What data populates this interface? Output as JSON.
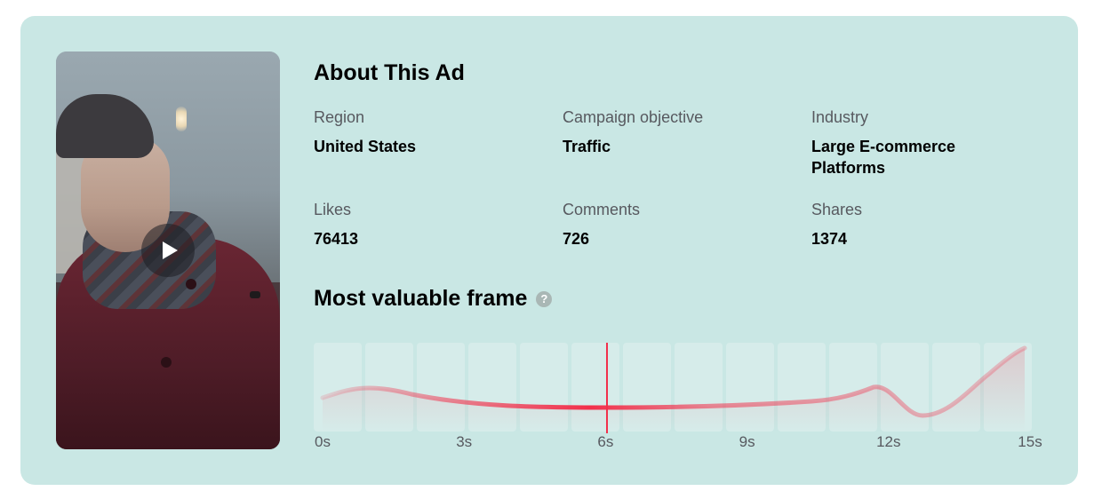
{
  "ad": {
    "title": "About This Ad",
    "region": {
      "label": "Region",
      "value": "United States"
    },
    "objective": {
      "label": "Campaign objective",
      "value": "Traffic"
    },
    "industry": {
      "label": "Industry",
      "value": "Large E-commerce Platforms"
    },
    "likes": {
      "label": "Likes",
      "value": "76413"
    },
    "comments": {
      "label": "Comments",
      "value": "726"
    },
    "shares": {
      "label": "Shares",
      "value": "1374"
    }
  },
  "frame_section": {
    "title": "Most valuable frame",
    "help_icon": "question-circle-icon",
    "help_glyph": "?",
    "selected_time_s": 6.1,
    "duration_s": 15,
    "ticks": [
      "0s",
      "3s",
      "6s",
      "9s",
      "12s",
      "15s"
    ]
  },
  "colors": {
    "card_bg": "#c9e7e4",
    "curve": "#f2304b",
    "cursor": "#f2304b"
  }
}
